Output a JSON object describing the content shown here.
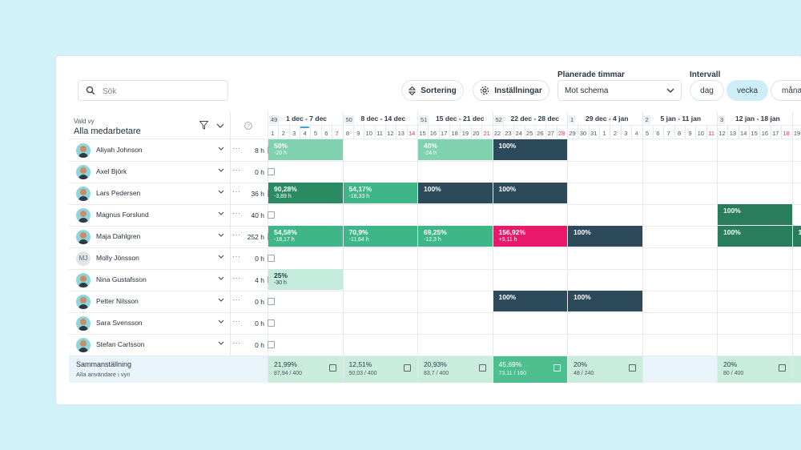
{
  "search": {
    "placeholder": "Sök"
  },
  "toolbar": {
    "sort_label": "Sortering",
    "settings_label": "Inställningar",
    "planned_hours_label": "Planerade timmar",
    "planned_hours_value": "Mot schema",
    "interval_label": "Intervall",
    "interval_options": [
      "dag",
      "vecka",
      "månad"
    ],
    "interval_selected": "vecka"
  },
  "view": {
    "caption": "Vald vy",
    "title": "Alla medarbetare"
  },
  "weeks": [
    {
      "no": "49",
      "label": "1 dec - 7 dec",
      "days": [
        "1",
        "2",
        "3",
        "4",
        "5",
        "6",
        "7"
      ]
    },
    {
      "no": "50",
      "label": "8 dec - 14 dec",
      "days": [
        "8",
        "9",
        "10",
        "11",
        "12",
        "13",
        "14"
      ]
    },
    {
      "no": "51",
      "label": "15 dec - 21 dec",
      "days": [
        "15",
        "16",
        "17",
        "18",
        "19",
        "20",
        "21"
      ]
    },
    {
      "no": "52",
      "label": "22 dec - 28 dec",
      "days": [
        "22",
        "23",
        "24",
        "25",
        "26",
        "27",
        "28"
      ]
    },
    {
      "no": "1",
      "label": "29 dec - 4 jan",
      "days": [
        "29",
        "30",
        "31",
        "1",
        "2",
        "3",
        "4"
      ]
    },
    {
      "no": "2",
      "label": "5 jan - 11 jan",
      "days": [
        "5",
        "6",
        "7",
        "8",
        "9",
        "10",
        "11"
      ]
    },
    {
      "no": "3",
      "label": "12 jan - 18 jan",
      "days": [
        "12",
        "13",
        "14",
        "15",
        "16",
        "17",
        "18"
      ]
    },
    {
      "no": "",
      "label": "",
      "days": [
        "19"
      ]
    }
  ],
  "employees": [
    {
      "name": "Aliyah Johnson",
      "hours": "8 h"
    },
    {
      "name": "Axel Björk",
      "hours": "0 h"
    },
    {
      "name": "Lars Pedersen",
      "hours": "36 h"
    },
    {
      "name": "Magnus Forslund",
      "hours": "40 h"
    },
    {
      "name": "Maja Dahlgren",
      "hours": "252 h"
    },
    {
      "name": "Molly Jönsson",
      "hours": "0 h",
      "initials": "MJ"
    },
    {
      "name": "Nina Gustafsson",
      "hours": "4 h"
    },
    {
      "name": "Petter Nilsson",
      "hours": "0 h"
    },
    {
      "name": "Sara Svensson",
      "hours": "0 h"
    },
    {
      "name": "Stefan Carlsson",
      "hours": "0 h"
    }
  ],
  "cells": [
    {
      "row": 0,
      "week": 0,
      "pct": "50%",
      "sub": "-20 h",
      "color": "#7fd1b0"
    },
    {
      "row": 0,
      "week": 2,
      "pct": "40%",
      "sub": "-24 h",
      "color": "#7fd1b0"
    },
    {
      "row": 0,
      "week": 3,
      "pct": "100%",
      "sub": "",
      "color": "#2d4a5c"
    },
    {
      "row": 2,
      "week": 0,
      "pct": "90,28%",
      "sub": "-3,89 h",
      "color": "#2a8a62"
    },
    {
      "row": 2,
      "week": 1,
      "pct": "54,17%",
      "sub": "-18,33 h",
      "color": "#3fb688"
    },
    {
      "row": 2,
      "week": 2,
      "pct": "100%",
      "sub": "",
      "color": "#2d4a5c"
    },
    {
      "row": 2,
      "week": 3,
      "pct": "100%",
      "sub": "",
      "color": "#2d4a5c"
    },
    {
      "row": 3,
      "week": 6,
      "pct": "100%",
      "sub": "",
      "color": "#2a7d5c"
    },
    {
      "row": 4,
      "week": 0,
      "pct": "54,58%",
      "sub": "-18,17 h",
      "color": "#3fb688"
    },
    {
      "row": 4,
      "week": 1,
      "pct": "70,9%",
      "sub": "-11,64 h",
      "color": "#3fb688"
    },
    {
      "row": 4,
      "week": 2,
      "pct": "69,25%",
      "sub": "-12,3 h",
      "color": "#3fb688"
    },
    {
      "row": 4,
      "week": 3,
      "pct": "156,92%",
      "sub": "+9,11 h",
      "color": "#e8196b"
    },
    {
      "row": 4,
      "week": 4,
      "pct": "100%",
      "sub": "",
      "color": "#2d4a5c"
    },
    {
      "row": 4,
      "week": 6,
      "pct": "100%",
      "sub": "",
      "color": "#2a7d5c"
    },
    {
      "row": 4,
      "week": 7,
      "pct": "1",
      "sub": "",
      "color": "#2a7d5c"
    },
    {
      "row": 6,
      "week": 0,
      "pct": "25%",
      "sub": "-30 h",
      "color": "#c5ebdc",
      "dark": true
    },
    {
      "row": 7,
      "week": 3,
      "pct": "100%",
      "sub": "",
      "color": "#2d4a5c"
    },
    {
      "row": 7,
      "week": 4,
      "pct": "100%",
      "sub": "",
      "color": "#2d4a5c"
    }
  ],
  "summary": {
    "title": "Sammanställning",
    "subtitle": "Alla användare i vyn",
    "weeks": [
      {
        "pct": "21,99%",
        "sub": "87,94 / 400",
        "color": "#c9ecdd"
      },
      {
        "pct": "12,51%",
        "sub": "50,03 / 400",
        "color": "#c9ecdd"
      },
      {
        "pct": "20,93%",
        "sub": "83,7 / 400",
        "color": "#c9ecdd"
      },
      {
        "pct": "45,69%",
        "sub": "73,11 / 160",
        "color": "#4dbf8f",
        "light": true
      },
      {
        "pct": "20%",
        "sub": "48 / 240",
        "color": "#c9ecdd"
      },
      {
        "pct": "",
        "sub": "",
        "color": "#e8f4fa"
      },
      {
        "pct": "20%",
        "sub": "80 / 400",
        "color": "#c9ecdd"
      },
      {
        "pct": "",
        "sub": "",
        "color": "#c9ecdd"
      }
    ]
  },
  "colors": {
    "accent": "#cdeef7",
    "dark_cell": "#2d4a5c",
    "overbooked": "#e8196b"
  }
}
